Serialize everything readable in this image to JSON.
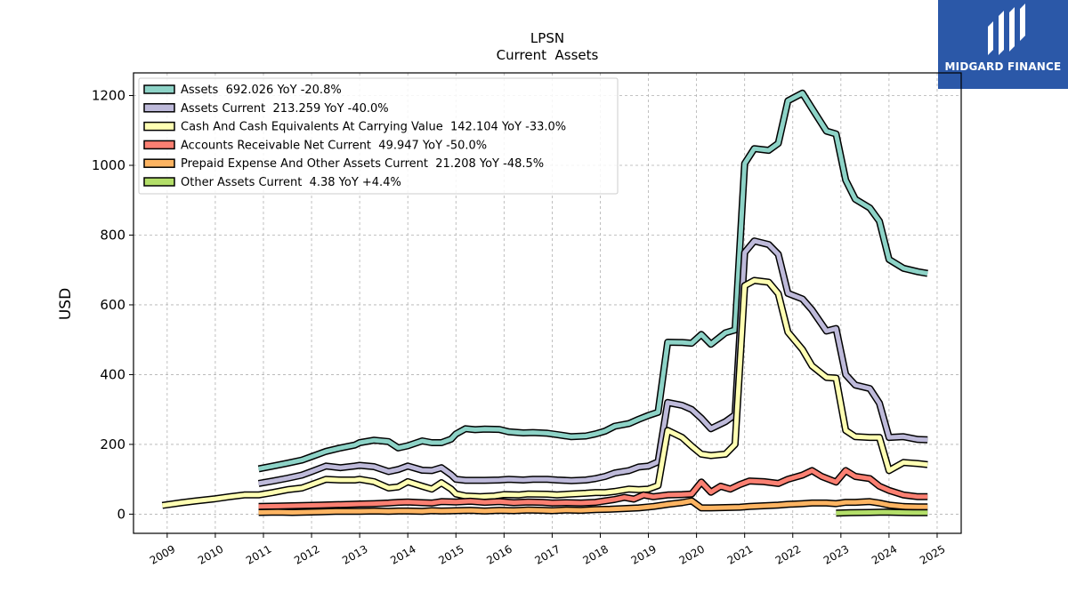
{
  "brand": {
    "name": "MIDGARD FINANCE",
    "bg_color": "#2b58a8"
  },
  "chart_data": {
    "type": "line",
    "title": "LPSN",
    "subtitle": "Current  Assets",
    "xlabel": "",
    "ylabel": "USD",
    "xlim": [
      2008.3,
      2025.5
    ],
    "ylim": [
      -55,
      1265
    ],
    "grid": true,
    "legend_position": "top-left",
    "x_ticks": [
      2009,
      2010,
      2011,
      2012,
      2013,
      2014,
      2015,
      2016,
      2017,
      2018,
      2019,
      2020,
      2021,
      2022,
      2023,
      2024,
      2025
    ],
    "y_ticks": [
      0,
      200,
      400,
      600,
      800,
      1000,
      1200
    ],
    "series": [
      {
        "name": "Assets  692.026 YoY -20.8%",
        "color": "#8dd3c7",
        "points": [
          [
            2010.9,
            130
          ],
          [
            2011.2,
            138
          ],
          [
            2011.5,
            146
          ],
          [
            2011.8,
            155
          ],
          [
            2012.0,
            165
          ],
          [
            2012.3,
            180
          ],
          [
            2012.6,
            190
          ],
          [
            2012.9,
            198
          ],
          [
            2013.0,
            205
          ],
          [
            2013.3,
            212
          ],
          [
            2013.6,
            208
          ],
          [
            2013.8,
            190
          ],
          [
            2014.0,
            196
          ],
          [
            2014.3,
            210
          ],
          [
            2014.5,
            205
          ],
          [
            2014.7,
            205
          ],
          [
            2014.9,
            215
          ],
          [
            2015.0,
            230
          ],
          [
            2015.2,
            245
          ],
          [
            2015.4,
            242
          ],
          [
            2015.6,
            244
          ],
          [
            2015.9,
            243
          ],
          [
            2016.1,
            236
          ],
          [
            2016.4,
            233
          ],
          [
            2016.6,
            234
          ],
          [
            2016.9,
            232
          ],
          [
            2017.1,
            228
          ],
          [
            2017.4,
            222
          ],
          [
            2017.7,
            224
          ],
          [
            2017.9,
            230
          ],
          [
            2018.1,
            238
          ],
          [
            2018.3,
            252
          ],
          [
            2018.6,
            260
          ],
          [
            2018.8,
            272
          ],
          [
            2019.0,
            283
          ],
          [
            2019.2,
            292
          ],
          [
            2019.4,
            493
          ],
          [
            2019.7,
            492
          ],
          [
            2019.9,
            490
          ],
          [
            2020.1,
            515
          ],
          [
            2020.3,
            487
          ],
          [
            2020.6,
            520
          ],
          [
            2020.8,
            528
          ],
          [
            2021.0,
            1005
          ],
          [
            2021.2,
            1048
          ],
          [
            2021.5,
            1043
          ],
          [
            2021.7,
            1063
          ],
          [
            2021.9,
            1185
          ],
          [
            2022.2,
            1207
          ],
          [
            2022.4,
            1163
          ],
          [
            2022.7,
            1098
          ],
          [
            2022.9,
            1090
          ],
          [
            2023.1,
            958
          ],
          [
            2023.3,
            903
          ],
          [
            2023.6,
            878
          ],
          [
            2023.8,
            840
          ],
          [
            2024.0,
            730
          ],
          [
            2024.3,
            705
          ],
          [
            2024.6,
            695
          ],
          [
            2024.8,
            690
          ]
        ]
      },
      {
        "name": "Assets Current  213.259 YoY -40.0%",
        "color": "#bebada",
        "points": [
          [
            2010.9,
            88
          ],
          [
            2011.2,
            95
          ],
          [
            2011.5,
            103
          ],
          [
            2011.8,
            112
          ],
          [
            2012.0,
            122
          ],
          [
            2012.3,
            138
          ],
          [
            2012.6,
            133
          ],
          [
            2012.9,
            138
          ],
          [
            2013.0,
            140
          ],
          [
            2013.3,
            136
          ],
          [
            2013.6,
            122
          ],
          [
            2013.8,
            128
          ],
          [
            2014.0,
            138
          ],
          [
            2014.3,
            126
          ],
          [
            2014.5,
            125
          ],
          [
            2014.7,
            133
          ],
          [
            2014.9,
            113
          ],
          [
            2015.0,
            100
          ],
          [
            2015.2,
            97
          ],
          [
            2015.6,
            97
          ],
          [
            2015.9,
            98
          ],
          [
            2016.1,
            100
          ],
          [
            2016.4,
            98
          ],
          [
            2016.6,
            100
          ],
          [
            2016.9,
            100
          ],
          [
            2017.1,
            98
          ],
          [
            2017.4,
            96
          ],
          [
            2017.7,
            98
          ],
          [
            2017.9,
            102
          ],
          [
            2018.1,
            108
          ],
          [
            2018.3,
            118
          ],
          [
            2018.6,
            125
          ],
          [
            2018.8,
            135
          ],
          [
            2019.0,
            138
          ],
          [
            2019.2,
            150
          ],
          [
            2019.4,
            320
          ],
          [
            2019.7,
            312
          ],
          [
            2019.9,
            300
          ],
          [
            2020.1,
            275
          ],
          [
            2020.3,
            245
          ],
          [
            2020.6,
            265
          ],
          [
            2020.8,
            285
          ],
          [
            2021.0,
            750
          ],
          [
            2021.2,
            783
          ],
          [
            2021.5,
            773
          ],
          [
            2021.7,
            745
          ],
          [
            2021.9,
            633
          ],
          [
            2022.2,
            617
          ],
          [
            2022.4,
            585
          ],
          [
            2022.7,
            525
          ],
          [
            2022.9,
            532
          ],
          [
            2023.1,
            400
          ],
          [
            2023.3,
            370
          ],
          [
            2023.6,
            360
          ],
          [
            2023.8,
            318
          ],
          [
            2024.0,
            220
          ],
          [
            2024.3,
            222
          ],
          [
            2024.6,
            214
          ],
          [
            2024.8,
            213
          ]
        ]
      },
      {
        "name": "Cash And Cash Equivalents At Carrying Value  142.104 YoY -33.0%",
        "color": "#ffffb3",
        "points": [
          [
            2008.9,
            25
          ],
          [
            2009.3,
            33
          ],
          [
            2009.6,
            38
          ],
          [
            2010.0,
            44
          ],
          [
            2010.3,
            50
          ],
          [
            2010.6,
            55
          ],
          [
            2010.9,
            55
          ],
          [
            2011.2,
            62
          ],
          [
            2011.5,
            70
          ],
          [
            2011.8,
            75
          ],
          [
            2012.0,
            85
          ],
          [
            2012.3,
            100
          ],
          [
            2012.6,
            98
          ],
          [
            2012.9,
            98
          ],
          [
            2013.0,
            100
          ],
          [
            2013.3,
            93
          ],
          [
            2013.6,
            75
          ],
          [
            2013.8,
            78
          ],
          [
            2014.0,
            93
          ],
          [
            2014.3,
            80
          ],
          [
            2014.5,
            72
          ],
          [
            2014.7,
            90
          ],
          [
            2014.9,
            72
          ],
          [
            2015.0,
            58
          ],
          [
            2015.2,
            52
          ],
          [
            2015.5,
            50
          ],
          [
            2015.8,
            52
          ],
          [
            2016.0,
            56
          ],
          [
            2016.3,
            55
          ],
          [
            2016.5,
            58
          ],
          [
            2016.9,
            57
          ],
          [
            2017.1,
            55
          ],
          [
            2017.4,
            58
          ],
          [
            2017.7,
            60
          ],
          [
            2017.9,
            62
          ],
          [
            2018.1,
            62
          ],
          [
            2018.3,
            65
          ],
          [
            2018.6,
            72
          ],
          [
            2018.8,
            70
          ],
          [
            2019.0,
            72
          ],
          [
            2019.2,
            82
          ],
          [
            2019.4,
            240
          ],
          [
            2019.7,
            220
          ],
          [
            2019.9,
            195
          ],
          [
            2020.1,
            172
          ],
          [
            2020.3,
            168
          ],
          [
            2020.6,
            172
          ],
          [
            2020.8,
            200
          ],
          [
            2021.0,
            655
          ],
          [
            2021.2,
            670
          ],
          [
            2021.5,
            665
          ],
          [
            2021.7,
            632
          ],
          [
            2021.9,
            522
          ],
          [
            2022.2,
            472
          ],
          [
            2022.4,
            425
          ],
          [
            2022.7,
            392
          ],
          [
            2022.9,
            390
          ],
          [
            2023.1,
            240
          ],
          [
            2023.3,
            222
          ],
          [
            2023.6,
            220
          ],
          [
            2023.8,
            220
          ],
          [
            2024.0,
            125
          ],
          [
            2024.3,
            148
          ],
          [
            2024.6,
            145
          ],
          [
            2024.8,
            142
          ]
        ]
      },
      {
        "name": "Accounts Receivable Net Current  49.947 YoY -50.0%",
        "color": "#fb8072",
        "points": [
          [
            2010.9,
            22
          ],
          [
            2011.3,
            23
          ],
          [
            2011.6,
            24
          ],
          [
            2011.9,
            25
          ],
          [
            2012.2,
            26
          ],
          [
            2012.5,
            27
          ],
          [
            2012.8,
            28
          ],
          [
            2013.0,
            29
          ],
          [
            2013.3,
            30
          ],
          [
            2013.6,
            32
          ],
          [
            2013.8,
            34
          ],
          [
            2014.0,
            35
          ],
          [
            2014.3,
            33
          ],
          [
            2014.5,
            32
          ],
          [
            2014.7,
            36
          ],
          [
            2015.0,
            35
          ],
          [
            2015.3,
            37
          ],
          [
            2015.6,
            34
          ],
          [
            2015.9,
            36
          ],
          [
            2016.2,
            33
          ],
          [
            2016.5,
            35
          ],
          [
            2016.8,
            34
          ],
          [
            2017.0,
            32
          ],
          [
            2017.3,
            33
          ],
          [
            2017.6,
            32
          ],
          [
            2017.9,
            34
          ],
          [
            2018.1,
            38
          ],
          [
            2018.3,
            42
          ],
          [
            2018.5,
            48
          ],
          [
            2018.7,
            43
          ],
          [
            2018.9,
            55
          ],
          [
            2019.1,
            50
          ],
          [
            2019.4,
            55
          ],
          [
            2019.7,
            56
          ],
          [
            2019.9,
            58
          ],
          [
            2020.1,
            92
          ],
          [
            2020.3,
            63
          ],
          [
            2020.5,
            80
          ],
          [
            2020.7,
            72
          ],
          [
            2020.9,
            85
          ],
          [
            2021.1,
            95
          ],
          [
            2021.4,
            93
          ],
          [
            2021.7,
            88
          ],
          [
            2021.9,
            100
          ],
          [
            2022.2,
            112
          ],
          [
            2022.4,
            125
          ],
          [
            2022.6,
            108
          ],
          [
            2022.9,
            92
          ],
          [
            2023.1,
            125
          ],
          [
            2023.3,
            108
          ],
          [
            2023.6,
            102
          ],
          [
            2023.8,
            80
          ],
          [
            2024.0,
            68
          ],
          [
            2024.3,
            55
          ],
          [
            2024.6,
            50
          ],
          [
            2024.8,
            50
          ]
        ]
      },
      {
        "name": "Prepaid Expense And Other Assets Current  21.208 YoY -48.5%",
        "color": "#fdb462",
        "points": [
          [
            2010.9,
            5
          ],
          [
            2011.3,
            6
          ],
          [
            2011.6,
            5
          ],
          [
            2011.9,
            6
          ],
          [
            2012.2,
            7
          ],
          [
            2012.5,
            8
          ],
          [
            2012.8,
            8
          ],
          [
            2013.0,
            8
          ],
          [
            2013.3,
            9
          ],
          [
            2013.6,
            8
          ],
          [
            2013.8,
            9
          ],
          [
            2014.0,
            9
          ],
          [
            2014.3,
            8
          ],
          [
            2014.5,
            10
          ],
          [
            2014.7,
            9
          ],
          [
            2015.0,
            10
          ],
          [
            2015.3,
            11
          ],
          [
            2015.6,
            9
          ],
          [
            2015.9,
            11
          ],
          [
            2016.2,
            10
          ],
          [
            2016.5,
            12
          ],
          [
            2016.8,
            11
          ],
          [
            2017.0,
            10
          ],
          [
            2017.3,
            12
          ],
          [
            2017.6,
            11
          ],
          [
            2017.9,
            13
          ],
          [
            2018.2,
            14
          ],
          [
            2018.5,
            16
          ],
          [
            2018.8,
            18
          ],
          [
            2019.1,
            22
          ],
          [
            2019.4,
            28
          ],
          [
            2019.7,
            33
          ],
          [
            2019.9,
            38
          ],
          [
            2020.1,
            18
          ],
          [
            2020.3,
            18
          ],
          [
            2020.6,
            19
          ],
          [
            2020.9,
            20
          ],
          [
            2021.1,
            22
          ],
          [
            2021.4,
            24
          ],
          [
            2021.7,
            26
          ],
          [
            2021.9,
            28
          ],
          [
            2022.2,
            30
          ],
          [
            2022.4,
            32
          ],
          [
            2022.7,
            32
          ],
          [
            2022.9,
            30
          ],
          [
            2023.1,
            34
          ],
          [
            2023.3,
            34
          ],
          [
            2023.6,
            36
          ],
          [
            2023.8,
            32
          ],
          [
            2024.0,
            26
          ],
          [
            2024.3,
            22
          ],
          [
            2024.6,
            21
          ],
          [
            2024.8,
            21
          ]
        ]
      },
      {
        "name": "Other Assets Current  4.38 YoY +4.4%",
        "color": "#b3de69",
        "points": [
          [
            2022.9,
            3
          ],
          [
            2023.2,
            4
          ],
          [
            2023.6,
            5
          ],
          [
            2023.9,
            6
          ],
          [
            2024.2,
            5
          ],
          [
            2024.5,
            4
          ],
          [
            2024.8,
            4.38
          ]
        ]
      }
    ]
  }
}
